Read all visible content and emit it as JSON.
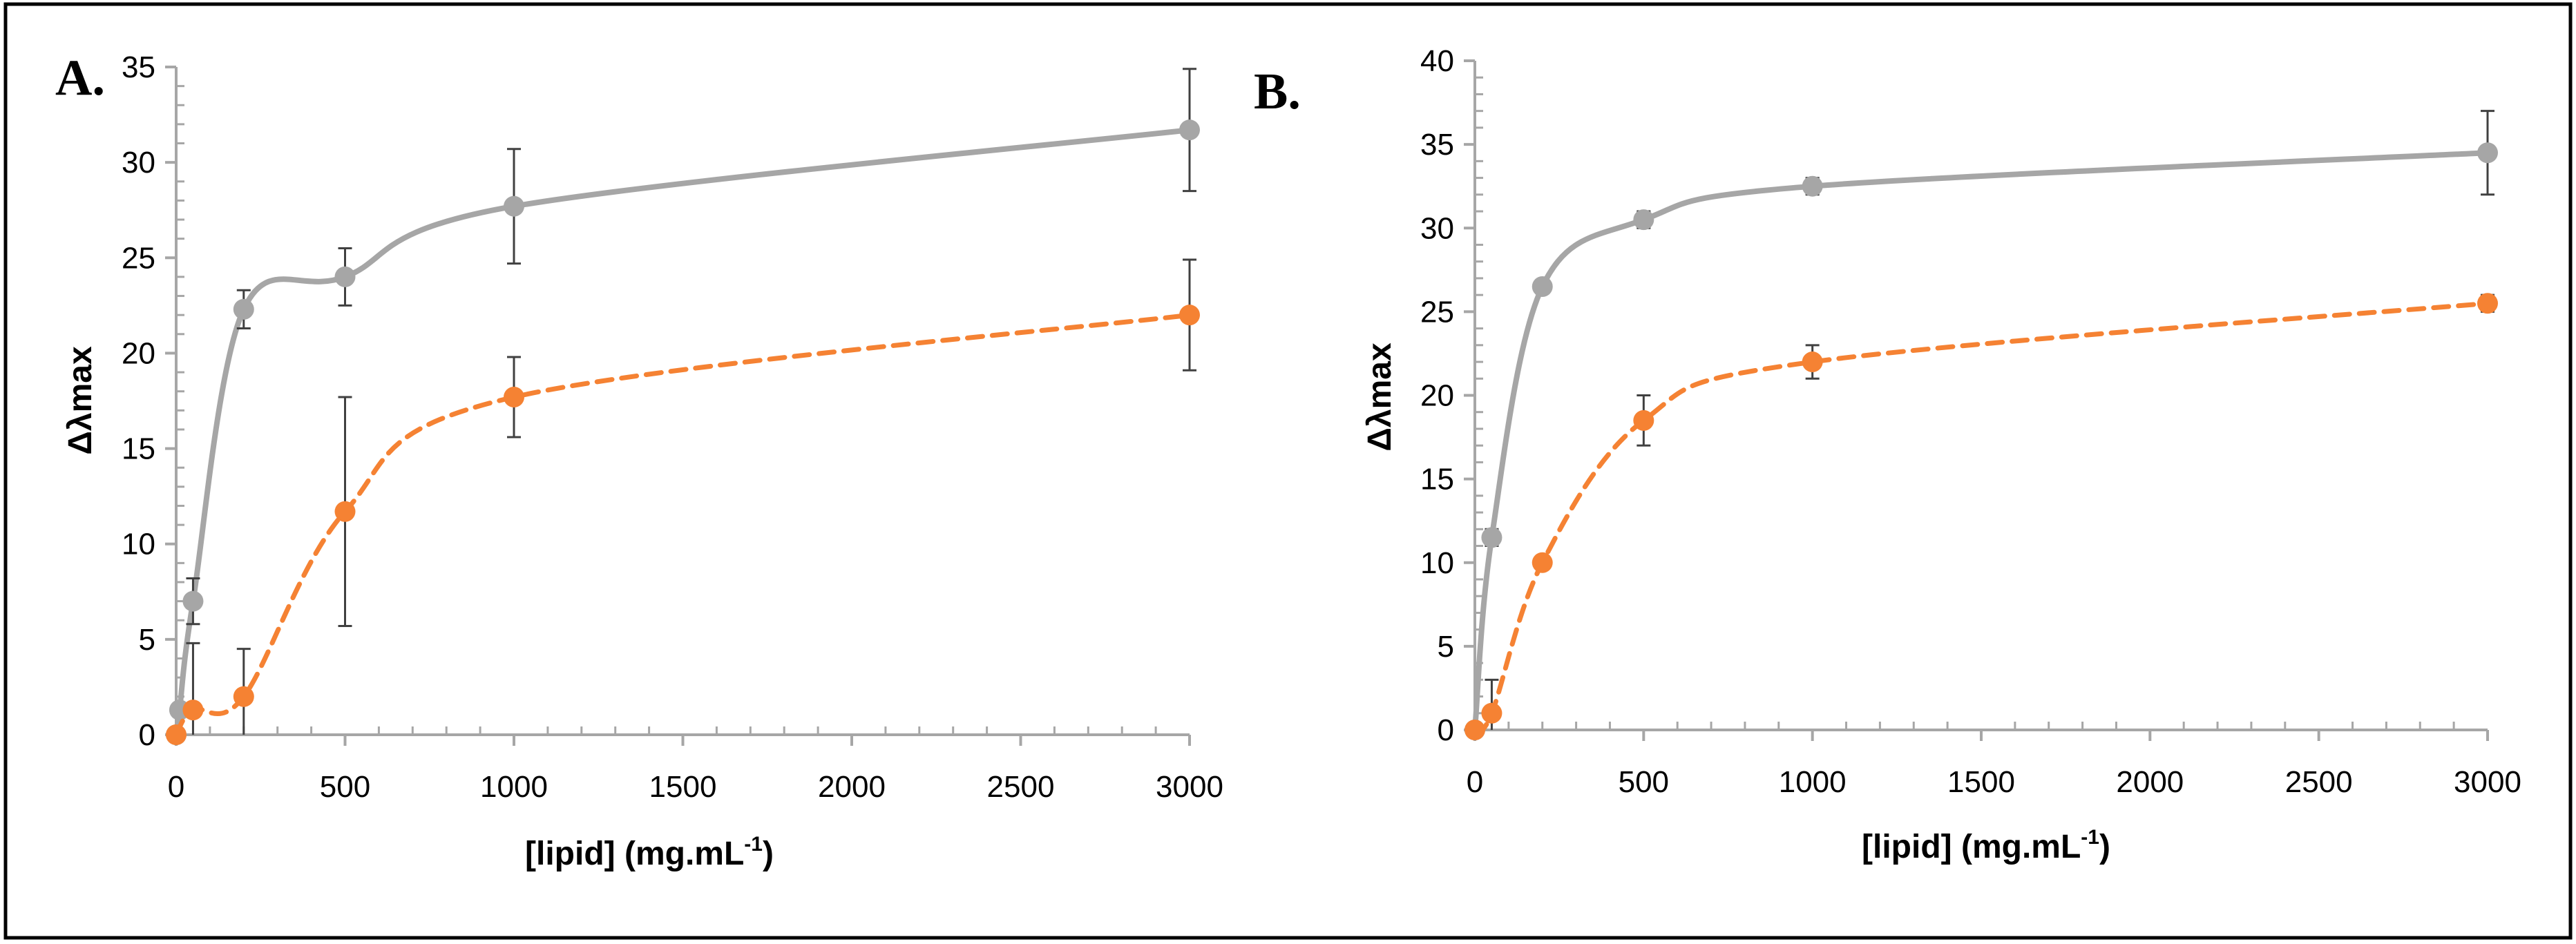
{
  "figure": {
    "colors": {
      "frame": "#000000",
      "axis": "#a6a6a6",
      "errorbar": "#404040"
    }
  },
  "chart_data": [
    {
      "type": "line",
      "panel_label": "A.",
      "xlabel": "[lipid] (mg.mL",
      "xlabel_sup": "-1",
      "xlabel_close": ")",
      "ylabel": "Δλmax",
      "xlim": [
        0,
        3000
      ],
      "ylim": [
        0,
        35
      ],
      "xticks": [
        0,
        500,
        1000,
        1500,
        2000,
        2500,
        3000
      ],
      "yticks": [
        0,
        5,
        10,
        15,
        20,
        25,
        30,
        35
      ],
      "grid": false,
      "series": [
        {
          "name": "gray",
          "color": "#a6a6a6",
          "dashed": false,
          "x": [
            0,
            10,
            50,
            200,
            500,
            1000,
            3000
          ],
          "y": [
            0,
            1.3,
            7.0,
            22.3,
            24.0,
            27.7,
            31.7
          ],
          "err": [
            0,
            0,
            1.2,
            1.0,
            1.5,
            3.0,
            3.2
          ]
        },
        {
          "name": "orange",
          "color": "#f58233",
          "dashed": true,
          "x": [
            0,
            50,
            200,
            500,
            1000,
            3000
          ],
          "y": [
            0,
            1.3,
            2.0,
            11.7,
            17.7,
            22.0
          ],
          "err": [
            0,
            3.5,
            2.5,
            6.0,
            2.1,
            2.9
          ]
        }
      ]
    },
    {
      "type": "line",
      "panel_label": "B.",
      "xlabel": "[lipid] (mg.mL",
      "xlabel_sup": "-1",
      "xlabel_close": ")",
      "ylabel": "Δλmax",
      "xlim": [
        0,
        3000
      ],
      "ylim": [
        0,
        40
      ],
      "xticks": [
        0,
        500,
        1000,
        1500,
        2000,
        2500,
        3000
      ],
      "yticks": [
        0,
        5,
        10,
        15,
        20,
        25,
        30,
        35,
        40
      ],
      "grid": false,
      "series": [
        {
          "name": "gray",
          "color": "#a6a6a6",
          "dashed": false,
          "x": [
            0,
            50,
            200,
            500,
            1000,
            3000
          ],
          "y": [
            0,
            11.5,
            26.5,
            30.5,
            32.5,
            34.5
          ],
          "err": [
            0,
            0.5,
            0.4,
            0.5,
            0.5,
            2.5
          ]
        },
        {
          "name": "orange",
          "color": "#f58233",
          "dashed": true,
          "x": [
            0,
            50,
            200,
            500,
            1000,
            3000
          ],
          "y": [
            0,
            1.0,
            10.0,
            18.5,
            22.0,
            25.5
          ],
          "err": [
            0,
            2.0,
            0.3,
            1.5,
            1.0,
            0.5
          ]
        }
      ]
    }
  ]
}
